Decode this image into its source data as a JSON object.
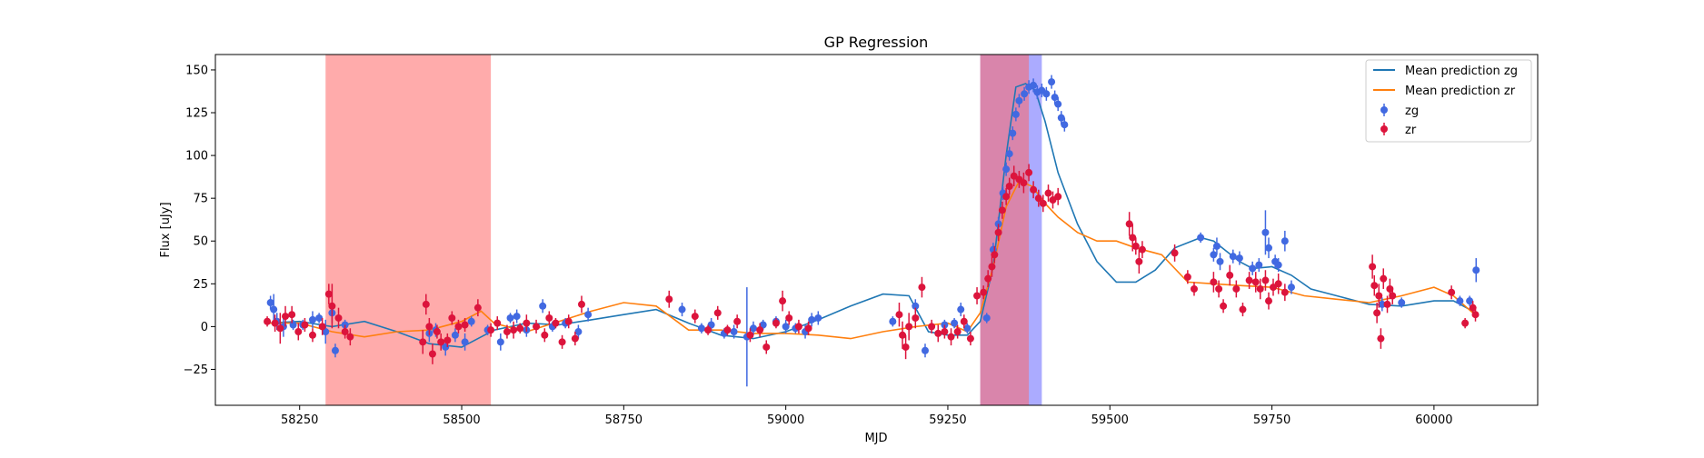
{
  "chart_data": {
    "type": "scatter",
    "title": "GP Regression",
    "xlabel": "MJD",
    "ylabel": "Flux [uJy]",
    "xlim": [
      58120,
      60160
    ],
    "ylim": [
      -46,
      159
    ],
    "x_ticks": [
      58250,
      58500,
      58750,
      59000,
      59250,
      59500,
      59750,
      60000
    ],
    "y_ticks": [
      -25,
      0,
      25,
      50,
      75,
      100,
      125,
      150
    ],
    "grid": false,
    "legend_position": "top-right",
    "legend_entries": [
      "Mean prediction zg",
      "Mean prediction zr",
      "zg",
      "zr"
    ],
    "shaded_regions": [
      {
        "x0": 58290,
        "x1": 58545,
        "color": "#ff6666",
        "opacity": 0.55
      },
      {
        "x0": 59300,
        "x1": 59395,
        "color": "#6666ff",
        "opacity": 0.55
      },
      {
        "x0": 59300,
        "x1": 59375,
        "color": "#ff6666",
        "opacity": 0.55
      }
    ],
    "lines": [
      {
        "name": "Mean prediction zg",
        "color": "#1f77b4",
        "x": [
          58200,
          58250,
          58300,
          58350,
          58400,
          58450,
          58500,
          58550,
          58600,
          58650,
          58700,
          58750,
          58800,
          58850,
          58900,
          58950,
          59000,
          59050,
          59100,
          59150,
          59190,
          59220,
          59250,
          59280,
          59300,
          59320,
          59340,
          59355,
          59370,
          59385,
          59400,
          59420,
          59450,
          59480,
          59510,
          59540,
          59570,
          59600,
          59640,
          59660,
          59680,
          59700,
          59720,
          59750,
          59780,
          59810,
          59850,
          59900,
          59950,
          60000,
          60030,
          60060
        ],
        "y": [
          2,
          3,
          0,
          3,
          -3,
          -10,
          -12,
          -2,
          2,
          1,
          4,
          7,
          10,
          2,
          -5,
          -7,
          -3,
          4,
          12,
          19,
          18,
          -3,
          -5,
          -5,
          3,
          35,
          100,
          140,
          142,
          138,
          120,
          90,
          60,
          38,
          26,
          26,
          33,
          46,
          52,
          50,
          44,
          38,
          34,
          35,
          30,
          22,
          18,
          13,
          12,
          15,
          15,
          9
        ]
      },
      {
        "name": "Mean prediction zr",
        "color": "#ff7f0e",
        "x": [
          58200,
          58250,
          58300,
          58350,
          58400,
          58450,
          58500,
          58530,
          58550,
          58600,
          58650,
          58700,
          58750,
          58800,
          58850,
          58900,
          58950,
          59000,
          59050,
          59100,
          59150,
          59200,
          59250,
          59280,
          59300,
          59320,
          59340,
          59360,
          59380,
          59400,
          59420,
          59450,
          59480,
          59510,
          59540,
          59580,
          59620,
          59660,
          59700,
          59750,
          59800,
          59850,
          59900,
          59950,
          60000,
          60030,
          60060
        ],
        "y": [
          2,
          2,
          -3,
          -6,
          -3,
          -2,
          3,
          9,
          2,
          -3,
          3,
          9,
          14,
          12,
          -2,
          -2,
          -4,
          -4,
          -5,
          -7,
          -3,
          0,
          2,
          -3,
          8,
          35,
          70,
          85,
          82,
          72,
          64,
          55,
          50,
          50,
          46,
          42,
          26,
          25,
          24,
          23,
          18,
          16,
          14,
          18,
          23,
          18,
          8
        ]
      }
    ],
    "series": [
      {
        "name": "zg",
        "color": "#4169e1",
        "points": [
          [
            58205,
            14,
            4
          ],
          [
            58210,
            10,
            9
          ],
          [
            58215,
            3,
            5
          ],
          [
            58225,
            0,
            6
          ],
          [
            58240,
            1,
            3
          ],
          [
            58255,
            1,
            3
          ],
          [
            58270,
            4,
            5
          ],
          [
            58280,
            5,
            3
          ],
          [
            58290,
            -3,
            7
          ],
          [
            58300,
            8,
            6
          ],
          [
            58305,
            -14,
            4
          ],
          [
            58320,
            1,
            3
          ],
          [
            58450,
            -4,
            5
          ],
          [
            58460,
            -2,
            4
          ],
          [
            58475,
            -12,
            5
          ],
          [
            58490,
            -5,
            4
          ],
          [
            58505,
            -9,
            5
          ],
          [
            58515,
            3,
            3
          ],
          [
            58540,
            -2,
            3
          ],
          [
            58560,
            -9,
            5
          ],
          [
            58575,
            5,
            3
          ],
          [
            58585,
            6,
            4
          ],
          [
            58600,
            -2,
            4
          ],
          [
            58625,
            12,
            4
          ],
          [
            58640,
            0,
            3
          ],
          [
            58660,
            2,
            3
          ],
          [
            58680,
            -3,
            4
          ],
          [
            58695,
            7,
            4
          ],
          [
            58840,
            10,
            4
          ],
          [
            58870,
            -1,
            3
          ],
          [
            58885,
            1,
            4
          ],
          [
            58905,
            -4,
            3
          ],
          [
            58920,
            -3,
            4
          ],
          [
            58940,
            -6,
            29
          ],
          [
            58950,
            -1,
            4
          ],
          [
            58965,
            1,
            3
          ],
          [
            58985,
            3,
            3
          ],
          [
            59000,
            0,
            4
          ],
          [
            59015,
            -1,
            3
          ],
          [
            59030,
            -3,
            4
          ],
          [
            59040,
            4,
            4
          ],
          [
            59050,
            5,
            4
          ],
          [
            59165,
            3,
            3
          ],
          [
            59200,
            12,
            4
          ],
          [
            59215,
            -14,
            4
          ],
          [
            59245,
            1,
            3
          ],
          [
            59260,
            2,
            3
          ],
          [
            59270,
            10,
            4
          ],
          [
            59280,
            -1,
            3
          ],
          [
            59310,
            5,
            3
          ],
          [
            59320,
            45,
            4
          ],
          [
            59328,
            60,
            4
          ],
          [
            59335,
            78,
            4
          ],
          [
            59340,
            92,
            4
          ],
          [
            59345,
            101,
            4
          ],
          [
            59350,
            113,
            4
          ],
          [
            59355,
            124,
            4
          ],
          [
            59360,
            132,
            4
          ],
          [
            59368,
            136,
            4
          ],
          [
            59375,
            140,
            4
          ],
          [
            59382,
            141,
            4
          ],
          [
            59388,
            137,
            4
          ],
          [
            59395,
            138,
            4
          ],
          [
            59402,
            136,
            4
          ],
          [
            59410,
            143,
            4
          ],
          [
            59415,
            134,
            4
          ],
          [
            59420,
            130,
            4
          ],
          [
            59425,
            122,
            4
          ],
          [
            59430,
            118,
            4
          ],
          [
            59640,
            52,
            3
          ],
          [
            59660,
            42,
            4
          ],
          [
            59665,
            47,
            5
          ],
          [
            59670,
            38,
            5
          ],
          [
            59690,
            41,
            4
          ],
          [
            59700,
            40,
            4
          ],
          [
            59720,
            34,
            4
          ],
          [
            59730,
            36,
            4
          ],
          [
            59740,
            55,
            13
          ],
          [
            59745,
            46,
            6
          ],
          [
            59755,
            38,
            4
          ],
          [
            59760,
            36,
            4
          ],
          [
            59770,
            50,
            6
          ],
          [
            59780,
            23,
            4
          ],
          [
            59920,
            13,
            4
          ],
          [
            59950,
            14,
            3
          ],
          [
            60040,
            15,
            3
          ],
          [
            60055,
            15,
            3
          ],
          [
            60065,
            33,
            7
          ]
        ]
      },
      {
        "name": "zr",
        "color": "#dc143c",
        "points": [
          [
            58200,
            3,
            3
          ],
          [
            58212,
            2,
            5
          ],
          [
            58220,
            -1,
            9
          ],
          [
            58228,
            6,
            6
          ],
          [
            58238,
            7,
            5
          ],
          [
            58248,
            -3,
            5
          ],
          [
            58258,
            1,
            4
          ],
          [
            58270,
            -5,
            4
          ],
          [
            58285,
            0,
            5
          ],
          [
            58295,
            19,
            6
          ],
          [
            58300,
            12,
            13
          ],
          [
            58310,
            5,
            6
          ],
          [
            58320,
            -3,
            4
          ],
          [
            58328,
            -6,
            5
          ],
          [
            58440,
            -9,
            7
          ],
          [
            58445,
            13,
            6
          ],
          [
            58450,
            0,
            5
          ],
          [
            58455,
            -16,
            6
          ],
          [
            58462,
            -3,
            4
          ],
          [
            58468,
            -9,
            5
          ],
          [
            58478,
            -8,
            4
          ],
          [
            58485,
            5,
            4
          ],
          [
            58495,
            0,
            4
          ],
          [
            58505,
            1,
            4
          ],
          [
            58525,
            11,
            5
          ],
          [
            58545,
            -2,
            4
          ],
          [
            58555,
            2,
            4
          ],
          [
            58570,
            -3,
            4
          ],
          [
            58580,
            -2,
            5
          ],
          [
            58590,
            -1,
            3
          ],
          [
            58600,
            2,
            5
          ],
          [
            58615,
            0,
            4
          ],
          [
            58628,
            -5,
            4
          ],
          [
            58635,
            5,
            4
          ],
          [
            58645,
            2,
            3
          ],
          [
            58655,
            -9,
            4
          ],
          [
            58665,
            3,
            4
          ],
          [
            58675,
            -7,
            4
          ],
          [
            58685,
            13,
            5
          ],
          [
            58820,
            16,
            5
          ],
          [
            58860,
            6,
            4
          ],
          [
            58880,
            -2,
            3
          ],
          [
            58895,
            8,
            4
          ],
          [
            58910,
            -2,
            3
          ],
          [
            58925,
            3,
            4
          ],
          [
            58945,
            -5,
            4
          ],
          [
            58960,
            -2,
            4
          ],
          [
            58970,
            -12,
            4
          ],
          [
            58985,
            2,
            3
          ],
          [
            58995,
            15,
            6
          ],
          [
            59005,
            5,
            4
          ],
          [
            59020,
            0,
            4
          ],
          [
            59035,
            -1,
            4
          ],
          [
            59175,
            7,
            7
          ],
          [
            59180,
            -5,
            8
          ],
          [
            59185,
            -12,
            7
          ],
          [
            59190,
            0,
            8
          ],
          [
            59200,
            5,
            6
          ],
          [
            59210,
            23,
            6
          ],
          [
            59225,
            0,
            4
          ],
          [
            59235,
            -4,
            5
          ],
          [
            59245,
            -3,
            4
          ],
          [
            59255,
            -6,
            5
          ],
          [
            59265,
            -3,
            4
          ],
          [
            59275,
            3,
            4
          ],
          [
            59285,
            -7,
            4
          ],
          [
            59295,
            18,
            5
          ],
          [
            59305,
            20,
            4
          ],
          [
            59312,
            28,
            5
          ],
          [
            59318,
            35,
            6
          ],
          [
            59322,
            42,
            5
          ],
          [
            59328,
            55,
            5
          ],
          [
            59334,
            68,
            5
          ],
          [
            59340,
            76,
            5
          ],
          [
            59345,
            82,
            5
          ],
          [
            59352,
            88,
            6
          ],
          [
            59360,
            86,
            5
          ],
          [
            59367,
            84,
            6
          ],
          [
            59375,
            90,
            5
          ],
          [
            59382,
            80,
            5
          ],
          [
            59390,
            75,
            5
          ],
          [
            59397,
            72,
            5
          ],
          [
            59405,
            78,
            5
          ],
          [
            59412,
            74,
            5
          ],
          [
            59420,
            76,
            5
          ],
          [
            59530,
            60,
            7
          ],
          [
            59535,
            52,
            8
          ],
          [
            59540,
            47,
            5
          ],
          [
            59545,
            38,
            7
          ],
          [
            59550,
            45,
            5
          ],
          [
            59600,
            43,
            5
          ],
          [
            59620,
            29,
            4
          ],
          [
            59630,
            22,
            4
          ],
          [
            59660,
            26,
            6
          ],
          [
            59668,
            22,
            5
          ],
          [
            59675,
            12,
            4
          ],
          [
            59685,
            30,
            6
          ],
          [
            59695,
            22,
            5
          ],
          [
            59705,
            10,
            4
          ],
          [
            59715,
            27,
            5
          ],
          [
            59725,
            26,
            6
          ],
          [
            59732,
            22,
            6
          ],
          [
            59740,
            27,
            6
          ],
          [
            59745,
            15,
            5
          ],
          [
            59752,
            23,
            5
          ],
          [
            59760,
            25,
            6
          ],
          [
            59770,
            20,
            5
          ],
          [
            59905,
            35,
            7
          ],
          [
            59908,
            24,
            6
          ],
          [
            59912,
            8,
            6
          ],
          [
            59915,
            18,
            7
          ],
          [
            59918,
            -7,
            6
          ],
          [
            59922,
            28,
            6
          ],
          [
            59928,
            13,
            5
          ],
          [
            59932,
            22,
            6
          ],
          [
            59936,
            18,
            5
          ],
          [
            60027,
            20,
            4
          ],
          [
            60048,
            2,
            3
          ],
          [
            60060,
            11,
            4
          ],
          [
            60064,
            7,
            4
          ]
        ]
      }
    ]
  }
}
